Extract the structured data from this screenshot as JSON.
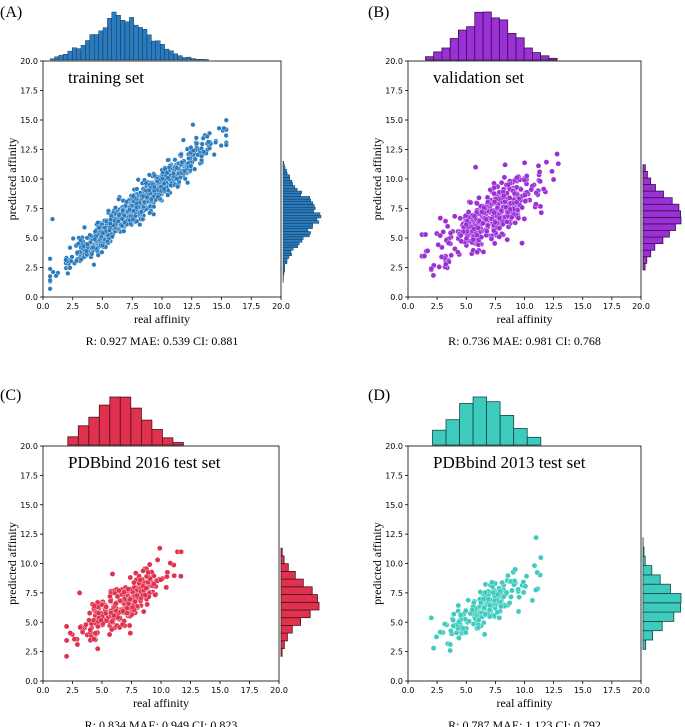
{
  "chart_data": [
    {
      "type": "scatter",
      "panel_label": "(A)",
      "title": "training set",
      "xlabel": "real affinity",
      "ylabel": "predicted affinity",
      "xlim": [
        0,
        20
      ],
      "ylim": [
        0,
        20
      ],
      "ticks": [
        "0.0",
        "2.5",
        "5.0",
        "7.5",
        "10.0",
        "12.5",
        "15.0",
        "17.5",
        "20.0"
      ],
      "color": "#2a7bbd",
      "metrics": "R: 0.927  MAE: 0.539  CI: 0.881",
      "n_points": 900,
      "slope": 0.86,
      "intercept": 1.0,
      "spread": 0.65,
      "x_range": [
        0.6,
        15.4
      ],
      "hist_x": {
        "bins": 40,
        "range": [
          0.6,
          15.4
        ],
        "mode": "fine",
        "center": 6.6,
        "sd": 2.4
      },
      "hist_y": {
        "bins": 45,
        "range": [
          1.2,
          11.5
        ],
        "mode": "fine",
        "center": 6.8,
        "sd": 1.8
      },
      "outliers": [
        [
          0.8,
          6.6
        ],
        [
          1.1,
          1.8
        ],
        [
          15.2,
          14.3
        ],
        [
          14.8,
          14.3
        ],
        [
          12.6,
          14.6
        ],
        [
          13.8,
          13.6
        ],
        [
          12.9,
          13.0
        ],
        [
          11.8,
          13.3
        ],
        [
          13.5,
          12.3
        ],
        [
          10.5,
          11.6
        ],
        [
          14.0,
          12.6
        ]
      ]
    },
    {
      "type": "scatter",
      "panel_label": "(B)",
      "title": "validation set",
      "xlabel": "real affinity",
      "ylabel": "predicted affinity",
      "xlim": [
        0,
        20
      ],
      "ylim": [
        0,
        20
      ],
      "ticks": [
        "0.0",
        "2.5",
        "5.0",
        "7.5",
        "10.0",
        "12.5",
        "15.0",
        "17.5",
        "20.0"
      ],
      "color": "#9b30d6",
      "metrics": "R: 0.736  MAE: 0.981  CI: 0.768",
      "n_points": 420,
      "slope": 0.6,
      "intercept": 2.6,
      "spread": 1.1,
      "x_range": [
        1.2,
        12.8
      ],
      "hist_x": {
        "bins": 16,
        "range": [
          1.5,
          12.8
        ],
        "mode": "coarse",
        "center": 6.8,
        "sd": 2.2
      },
      "hist_y": {
        "bins": 16,
        "range": [
          2.3,
          11.2
        ],
        "mode": "coarse",
        "center": 6.8,
        "sd": 1.7
      },
      "outliers": [
        [
          5.8,
          11.0
        ],
        [
          12.9,
          11.3
        ],
        [
          11.3,
          10.6
        ],
        [
          1.5,
          5.3
        ],
        [
          2.0,
          2.4
        ]
      ]
    },
    {
      "type": "scatter",
      "panel_label": "(C)",
      "title": "PDBbind 2016 test set",
      "xlabel": "real affinity",
      "ylabel": "predicted affinity",
      "xlim": [
        0,
        20
      ],
      "ylim": [
        0,
        20
      ],
      "ticks": [
        "0.0",
        "2.5",
        "5.0",
        "7.5",
        "10.0",
        "12.5",
        "15.0",
        "17.5",
        "20.0"
      ],
      "color": "#e0314e",
      "metrics": "R: 0.834  MAE: 0.949  CI: 0.823",
      "n_points": 285,
      "slope": 0.66,
      "intercept": 2.1,
      "spread": 0.9,
      "x_range": [
        2.0,
        11.8
      ],
      "hist_x": {
        "bins": 11,
        "range": [
          2.1,
          11.9
        ],
        "mode": "coarse",
        "center": 6.4,
        "sd": 2.1
      },
      "hist_y": {
        "bins": 14,
        "range": [
          2.1,
          11.3
        ],
        "mode": "coarse",
        "center": 6.8,
        "sd": 1.6
      },
      "outliers": [
        [
          9.9,
          11.3
        ],
        [
          11.4,
          11.0
        ],
        [
          11.7,
          11.0
        ],
        [
          2.0,
          2.1
        ],
        [
          3.1,
          7.5
        ]
      ]
    },
    {
      "type": "scatter",
      "panel_label": "(D)",
      "title": "PDBbind 2013 test set",
      "xlabel": "real affinity",
      "ylabel": "predicted affinity",
      "xlim": [
        0,
        20
      ],
      "ylim": [
        0,
        20
      ],
      "ticks": [
        "0.0",
        "2.5",
        "5.0",
        "7.5",
        "10.0",
        "12.5",
        "15.0",
        "17.5",
        "20.0"
      ],
      "color": "#3ccbbd",
      "metrics": "R: 0.787  MAE: 1.123  CI: 0.792",
      "n_points": 195,
      "slope": 0.62,
      "intercept": 2.2,
      "spread": 0.9,
      "x_range": [
        2.0,
        11.6
      ],
      "hist_x": {
        "bins": 8,
        "range": [
          2.1,
          11.4
        ],
        "mode": "coarse",
        "center": 6.3,
        "sd": 2.4
      },
      "hist_y": {
        "bins": 12,
        "range": [
          2.7,
          12.2
        ],
        "mode": "coarse",
        "center": 6.6,
        "sd": 1.6
      },
      "outliers": [
        [
          11.0,
          12.2
        ],
        [
          11.4,
          10.5
        ],
        [
          2.2,
          2.8
        ],
        [
          9.2,
          9.5
        ]
      ]
    }
  ]
}
